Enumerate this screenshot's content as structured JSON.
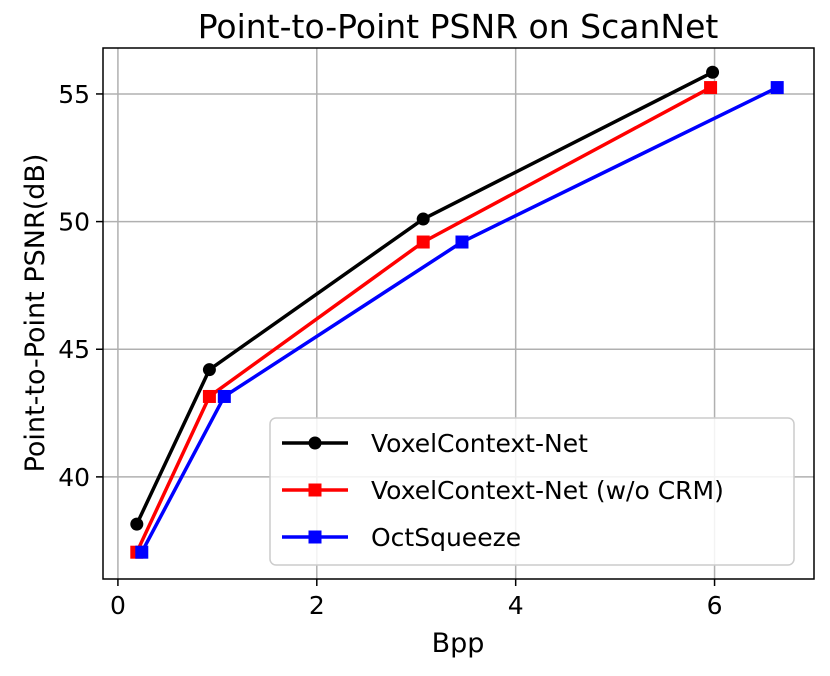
{
  "chart_data": {
    "type": "line",
    "title": "Point-to-Point PSNR on ScanNet",
    "xlabel": "Bpp",
    "ylabel": "Point-to-Point PSNR(dB)",
    "xlim": [
      -0.15,
      7.0
    ],
    "ylim": [
      36.0,
      56.8
    ],
    "xticks": [
      0,
      2,
      4,
      6
    ],
    "yticks": [
      40,
      45,
      50,
      55
    ],
    "grid": true,
    "legend_position": "lower-right",
    "series": [
      {
        "name": "VoxelContext-Net",
        "color": "#000000",
        "marker": "circle",
        "x": [
          0.19,
          0.92,
          3.07,
          5.98
        ],
        "y": [
          38.15,
          44.2,
          50.1,
          55.85
        ]
      },
      {
        "name": "VoxelContext-Net (w/o CRM)",
        "color": "#ff0000",
        "marker": "square",
        "x": [
          0.19,
          0.92,
          3.07,
          5.96
        ],
        "y": [
          37.05,
          43.15,
          49.2,
          55.25
        ]
      },
      {
        "name": "OctSqueeze",
        "color": "#0000ff",
        "marker": "square",
        "x": [
          0.24,
          1.07,
          3.46,
          6.63
        ],
        "y": [
          37.05,
          43.15,
          49.2,
          55.25
        ]
      }
    ]
  }
}
